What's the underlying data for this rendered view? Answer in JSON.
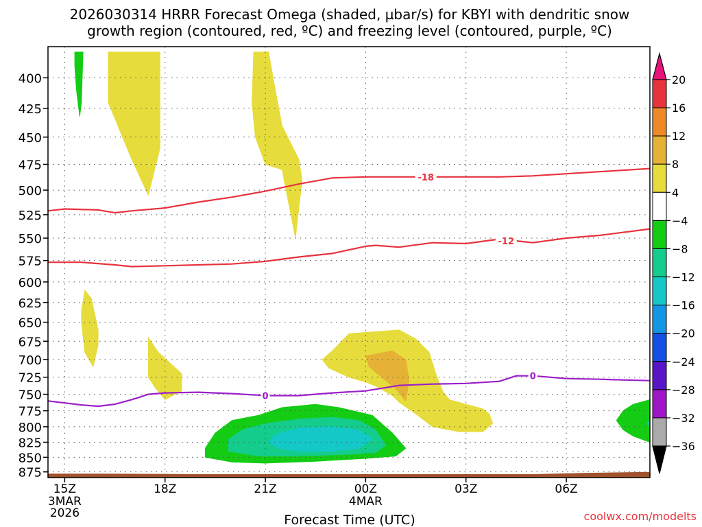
{
  "chart_data": {
    "type": "heatmap",
    "title": [
      "2026030314 HRRR Forecast Omega (shaded, µbar/s) for KBYI with dendritic snow",
      "growth region (contoured, red, ºC) and freezing level (contoured, purple, ºC)"
    ],
    "xlabel": "Forecast Time (UTC)",
    "ylabel": "",
    "x_unit": "hours after 2026-03-03 14Z",
    "xlim": [
      0.5,
      18.5
    ],
    "ylim": [
      376,
      885
    ],
    "y_scale": "pressure (hPa), reversed",
    "x_ticks": [
      {
        "x": 1,
        "label": "15Z",
        "sub": [
          "3MAR",
          "2026"
        ]
      },
      {
        "x": 4,
        "label": "18Z",
        "sub": []
      },
      {
        "x": 7,
        "label": "21Z",
        "sub": []
      },
      {
        "x": 10,
        "label": "00Z",
        "sub": [
          "4MAR"
        ]
      },
      {
        "x": 13,
        "label": "03Z",
        "sub": []
      },
      {
        "x": 16,
        "label": "06Z",
        "sub": []
      }
    ],
    "y_ticks": [
      400,
      425,
      450,
      475,
      500,
      525,
      550,
      575,
      600,
      625,
      650,
      675,
      700,
      725,
      750,
      775,
      800,
      825,
      850,
      875
    ],
    "grid": true,
    "colorbar": {
      "labels": [
        "20",
        "16",
        "12",
        "8",
        "4",
        "−4",
        "−8",
        "−12",
        "−16",
        "−20",
        "−24",
        "−28",
        "−32",
        "−36"
      ],
      "colors": [
        "#e8323c",
        "#ee8a26",
        "#e6b236",
        "#e6dc3c",
        "#ffffff",
        "#14cc14",
        "#14cc8c",
        "#14c8c8",
        "#1496e6",
        "#1450e6",
        "#5a14c8",
        "#a014c8",
        "#aaaaaa"
      ],
      "top_color": "#e6147a",
      "bottom_color": "#000000"
    },
    "omega_fields": [
      {
        "color": "#e6dc3c",
        "points": [
          [
            2.3,
            380
          ],
          [
            3.85,
            380
          ],
          [
            3.85,
            460
          ],
          [
            3.5,
            505
          ],
          [
            3.0,
            470
          ],
          [
            2.3,
            420
          ]
        ]
      },
      {
        "color": "#14cc14",
        "points": [
          [
            1.3,
            380
          ],
          [
            1.55,
            380
          ],
          [
            1.5,
            420
          ],
          [
            1.45,
            432
          ],
          [
            1.35,
            410
          ],
          [
            1.3,
            390
          ]
        ]
      },
      {
        "color": "#e6dc3c",
        "points": [
          [
            6.65,
            380
          ],
          [
            7.1,
            380
          ],
          [
            7.3,
            410
          ],
          [
            7.5,
            440
          ],
          [
            8.0,
            470
          ],
          [
            8.1,
            490
          ],
          [
            7.9,
            550
          ],
          [
            7.5,
            480
          ],
          [
            7.0,
            475
          ],
          [
            6.7,
            450
          ],
          [
            6.6,
            420
          ]
        ]
      },
      {
        "color": "#e6dc3c",
        "points": [
          [
            1.6,
            610
          ],
          [
            1.8,
            620
          ],
          [
            2.0,
            660
          ],
          [
            2.0,
            680
          ],
          [
            1.85,
            710
          ],
          [
            1.6,
            690
          ],
          [
            1.5,
            650
          ],
          [
            1.5,
            635
          ]
        ]
      },
      {
        "color": "#e6dc3c",
        "points": [
          [
            3.5,
            670
          ],
          [
            3.8,
            690
          ],
          [
            4.5,
            720
          ],
          [
            4.5,
            745
          ],
          [
            4.0,
            758
          ],
          [
            3.7,
            740
          ],
          [
            3.5,
            725
          ],
          [
            3.5,
            700
          ]
        ]
      },
      {
        "color": "#e6dc3c",
        "points": [
          [
            9.5,
            665
          ],
          [
            11.0,
            660
          ],
          [
            11.5,
            672
          ],
          [
            11.9,
            690
          ],
          [
            12.1,
            720
          ],
          [
            12.3,
            745
          ],
          [
            12.5,
            758
          ],
          [
            13.5,
            772
          ],
          [
            13.7,
            780
          ],
          [
            13.8,
            795
          ],
          [
            13.5,
            808
          ],
          [
            12.8,
            808
          ],
          [
            12.0,
            800
          ],
          [
            11.5,
            780
          ],
          [
            11.0,
            762
          ],
          [
            10.8,
            752
          ],
          [
            10.3,
            738
          ],
          [
            10.0,
            732
          ],
          [
            9.5,
            725
          ],
          [
            8.9,
            712
          ],
          [
            8.7,
            700
          ],
          [
            9.0,
            688
          ]
        ]
      },
      {
        "color": "#e6b236",
        "points": [
          [
            10.0,
            695
          ],
          [
            10.8,
            688
          ],
          [
            11.2,
            700
          ],
          [
            11.3,
            730
          ],
          [
            11.2,
            760
          ],
          [
            10.9,
            742
          ],
          [
            10.4,
            722
          ],
          [
            10.1,
            710
          ]
        ]
      },
      {
        "color": "#14cc14",
        "points": [
          [
            6.0,
            790
          ],
          [
            6.8,
            782
          ],
          [
            7.5,
            770
          ],
          [
            8.5,
            765
          ],
          [
            9.2,
            770
          ],
          [
            10.2,
            782
          ],
          [
            10.8,
            810
          ],
          [
            11.2,
            835
          ],
          [
            10.9,
            848
          ],
          [
            10.0,
            852
          ],
          [
            8.5,
            857
          ],
          [
            7.0,
            860
          ],
          [
            6.0,
            858
          ],
          [
            5.2,
            850
          ],
          [
            5.2,
            835
          ],
          [
            5.5,
            810
          ]
        ]
      },
      {
        "color": "#14cc8c",
        "points": [
          [
            6.3,
            805
          ],
          [
            7.0,
            795
          ],
          [
            8.0,
            788
          ],
          [
            9.0,
            785
          ],
          [
            9.8,
            790
          ],
          [
            10.3,
            805
          ],
          [
            10.6,
            830
          ],
          [
            10.3,
            842
          ],
          [
            9.5,
            845
          ],
          [
            8.0,
            848
          ],
          [
            6.8,
            848
          ],
          [
            5.9,
            840
          ],
          [
            5.9,
            820
          ]
        ]
      },
      {
        "color": "#14c8c8",
        "points": [
          [
            7.3,
            812
          ],
          [
            8.0,
            802
          ],
          [
            9.0,
            800
          ],
          [
            9.8,
            805
          ],
          [
            10.2,
            820
          ],
          [
            9.8,
            835
          ],
          [
            9.0,
            840
          ],
          [
            8.0,
            840
          ],
          [
            7.4,
            835
          ],
          [
            7.1,
            825
          ]
        ]
      },
      {
        "color": "#14cc14",
        "points": [
          [
            18.5,
            758
          ],
          [
            18.5,
            825
          ],
          [
            18.0,
            815
          ],
          [
            17.7,
            805
          ],
          [
            17.5,
            790
          ],
          [
            17.7,
            775
          ],
          [
            18.0,
            765
          ]
        ]
      },
      {
        "color": "#14c8c8",
        "points": [
          [
            18.5,
            790
          ],
          [
            18.5,
            800
          ],
          [
            18.42,
            795
          ]
        ]
      }
    ],
    "terrain": {
      "color": "#a0522d",
      "top_hpa": [
        [
          0.5,
          878
        ],
        [
          2.0,
          878
        ],
        [
          5.0,
          879
        ],
        [
          10.0,
          879
        ],
        [
          15.0,
          879
        ],
        [
          16.5,
          877
        ],
        [
          18.5,
          875
        ]
      ]
    },
    "contours": [
      {
        "label": "-18",
        "color": "#e8323c",
        "points": [
          [
            0.5,
            521
          ],
          [
            1.0,
            519
          ],
          [
            2.0,
            520
          ],
          [
            2.5,
            523
          ],
          [
            3.0,
            521
          ],
          [
            4.0,
            518
          ],
          [
            5.0,
            512
          ],
          [
            6.0,
            507
          ],
          [
            7.0,
            501
          ],
          [
            8.0,
            494
          ],
          [
            9.0,
            488
          ],
          [
            10.0,
            487
          ],
          [
            11.0,
            487
          ],
          [
            12.0,
            487
          ],
          [
            13.0,
            487
          ],
          [
            14.0,
            487
          ],
          [
            15.0,
            486
          ],
          [
            16.0,
            484
          ],
          [
            17.0,
            482
          ],
          [
            18.5,
            479
          ]
        ]
      },
      {
        "label": "-12",
        "color": "#e8323c",
        "points": [
          [
            0.5,
            577
          ],
          [
            1.5,
            577
          ],
          [
            2.5,
            580
          ],
          [
            3.0,
            582
          ],
          [
            4.0,
            581
          ],
          [
            5.0,
            580
          ],
          [
            6.0,
            579
          ],
          [
            7.0,
            576
          ],
          [
            8.0,
            571
          ],
          [
            9.0,
            567
          ],
          [
            10.0,
            559
          ],
          [
            10.3,
            558
          ],
          [
            11.0,
            560
          ],
          [
            12.0,
            555
          ],
          [
            13.0,
            556
          ],
          [
            14.0,
            551
          ],
          [
            15.0,
            555
          ],
          [
            16.0,
            550
          ],
          [
            17.0,
            547
          ],
          [
            18.5,
            540
          ]
        ]
      },
      {
        "label": "0",
        "color": "#9b1fc9",
        "points": [
          [
            0.5,
            760
          ],
          [
            1.5,
            766
          ],
          [
            2.0,
            768
          ],
          [
            2.5,
            765
          ],
          [
            3.0,
            758
          ],
          [
            3.2,
            755
          ],
          [
            3.5,
            750
          ],
          [
            4.0,
            748
          ],
          [
            5.0,
            747
          ],
          [
            6.0,
            749
          ],
          [
            7.0,
            752
          ],
          [
            8.0,
            752
          ],
          [
            9.0,
            748
          ],
          [
            10.0,
            745
          ],
          [
            11.0,
            737
          ],
          [
            12.0,
            735
          ],
          [
            13.0,
            734
          ],
          [
            14.0,
            731
          ],
          [
            14.5,
            723
          ],
          [
            15.0,
            723
          ],
          [
            16.0,
            727
          ],
          [
            17.0,
            728
          ],
          [
            18.5,
            730
          ]
        ]
      }
    ],
    "contour_labels": [
      {
        "text": "-18",
        "x": 11.8,
        "p": 487,
        "color": "#e8323c"
      },
      {
        "text": "-12",
        "x": 14.2,
        "p": 553,
        "color": "#e8323c"
      },
      {
        "text": "0",
        "x": 7.0,
        "p": 752,
        "color": "#9b1fc9"
      },
      {
        "text": "0",
        "x": 15.0,
        "p": 723,
        "color": "#9b1fc9"
      }
    ],
    "credit": "coolwx.com/modelts"
  }
}
